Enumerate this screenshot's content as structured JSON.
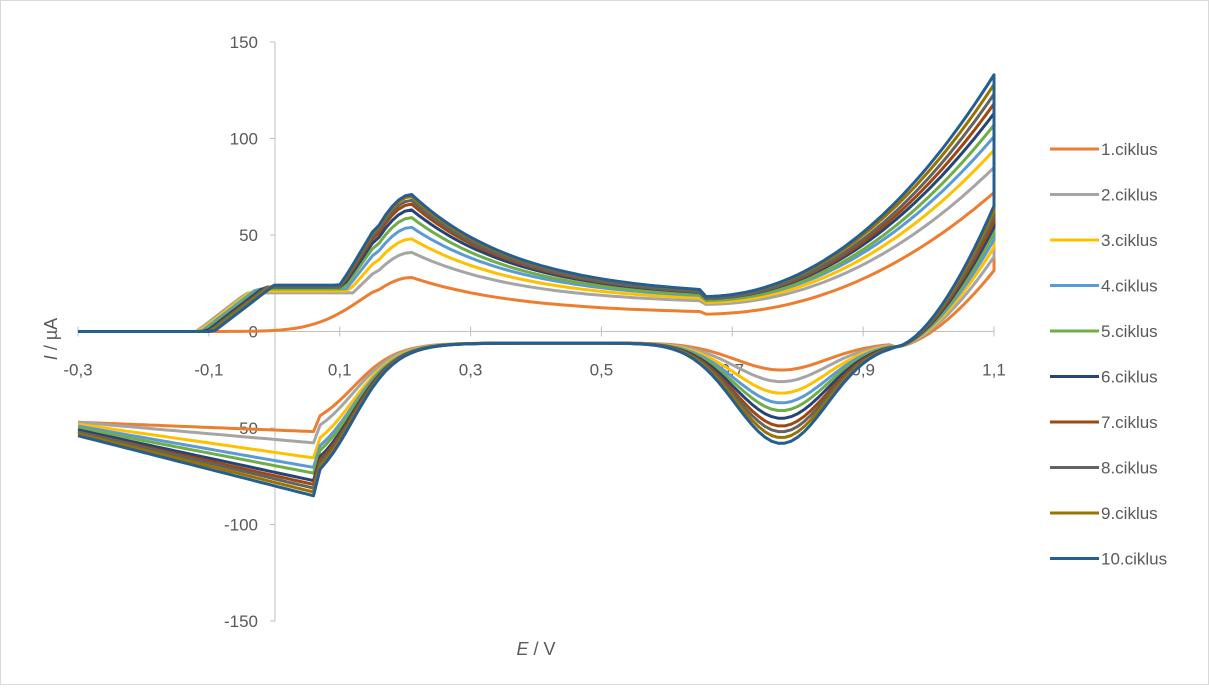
{
  "chart_data": {
    "type": "line",
    "xlabel": {
      "italic": "E",
      "rest": " / V"
    },
    "ylabel": {
      "italic": "I",
      "rest": " / µA"
    },
    "xlim": [
      -0.3,
      1.1
    ],
    "ylim": [
      -150,
      150
    ],
    "x_ticks": [
      -0.3,
      -0.1,
      0.1,
      0.3,
      0.5,
      0.7,
      0.9,
      1.1
    ],
    "x_tick_labels": [
      "-0,3",
      "-0,1",
      "0,1",
      "0,3",
      "0,5",
      "0,7",
      "0,9",
      "1,1"
    ],
    "y_ticks": [
      150,
      100,
      50,
      0,
      -50,
      -100,
      -150
    ],
    "y_tick_labels": [
      "150",
      "100",
      "50",
      "0",
      "-50",
      "-100",
      "-150"
    ],
    "grid": false,
    "legend_position": "right",
    "series": [
      {
        "name": "1.ciklus",
        "color": "#ED7D31",
        "first": true,
        "ox_peak1": 28,
        "ox_mid": 9,
        "ox_end": 72,
        "red_peak1": -52,
        "red_peak2": -20
      },
      {
        "name": "2.ciklus",
        "color": "#A5A5A5",
        "ox_peak1": 41,
        "ox_mid": 14,
        "ox_end": 85,
        "red_peak1": -58,
        "red_peak2": -26,
        "start": -47
      },
      {
        "name": "3.ciklus",
        "color": "#FFC000",
        "ox_peak1": 48,
        "ox_mid": 15,
        "ox_end": 94,
        "red_peak1": -66,
        "red_peak2": -32,
        "start": -48
      },
      {
        "name": "4.ciklus",
        "color": "#5B9BD5",
        "ox_peak1": 54,
        "ox_mid": 16,
        "ox_end": 101,
        "red_peak1": -71,
        "red_peak2": -37,
        "start": -49
      },
      {
        "name": "5.ciklus",
        "color": "#70AD47",
        "ox_peak1": 59,
        "ox_mid": 16,
        "ox_end": 107,
        "red_peak1": -74,
        "red_peak2": -41,
        "start": -50
      },
      {
        "name": "6.ciklus",
        "color": "#264478",
        "ox_peak1": 63,
        "ox_mid": 17,
        "ox_end": 113,
        "red_peak1": -78,
        "red_peak2": -45,
        "start": -51
      },
      {
        "name": "7.ciklus",
        "color": "#9E480E",
        "ox_peak1": 66,
        "ox_mid": 17,
        "ox_end": 118,
        "red_peak1": -80,
        "red_peak2": -49,
        "start": -52
      },
      {
        "name": "8.ciklus",
        "color": "#636363",
        "ox_peak1": 68,
        "ox_mid": 17,
        "ox_end": 123,
        "red_peak1": -82,
        "red_peak2": -52,
        "start": -52
      },
      {
        "name": "9.ciklus",
        "color": "#997300",
        "ox_peak1": 70,
        "ox_mid": 18,
        "ox_end": 128,
        "red_peak1": -84,
        "red_peak2": -55,
        "start": -53
      },
      {
        "name": "10.ciklus",
        "color": "#255E91",
        "ox_peak1": 71,
        "ox_mid": 18,
        "ox_end": 133,
        "red_peak1": -86,
        "red_peak2": -58,
        "start": -54
      }
    ]
  }
}
